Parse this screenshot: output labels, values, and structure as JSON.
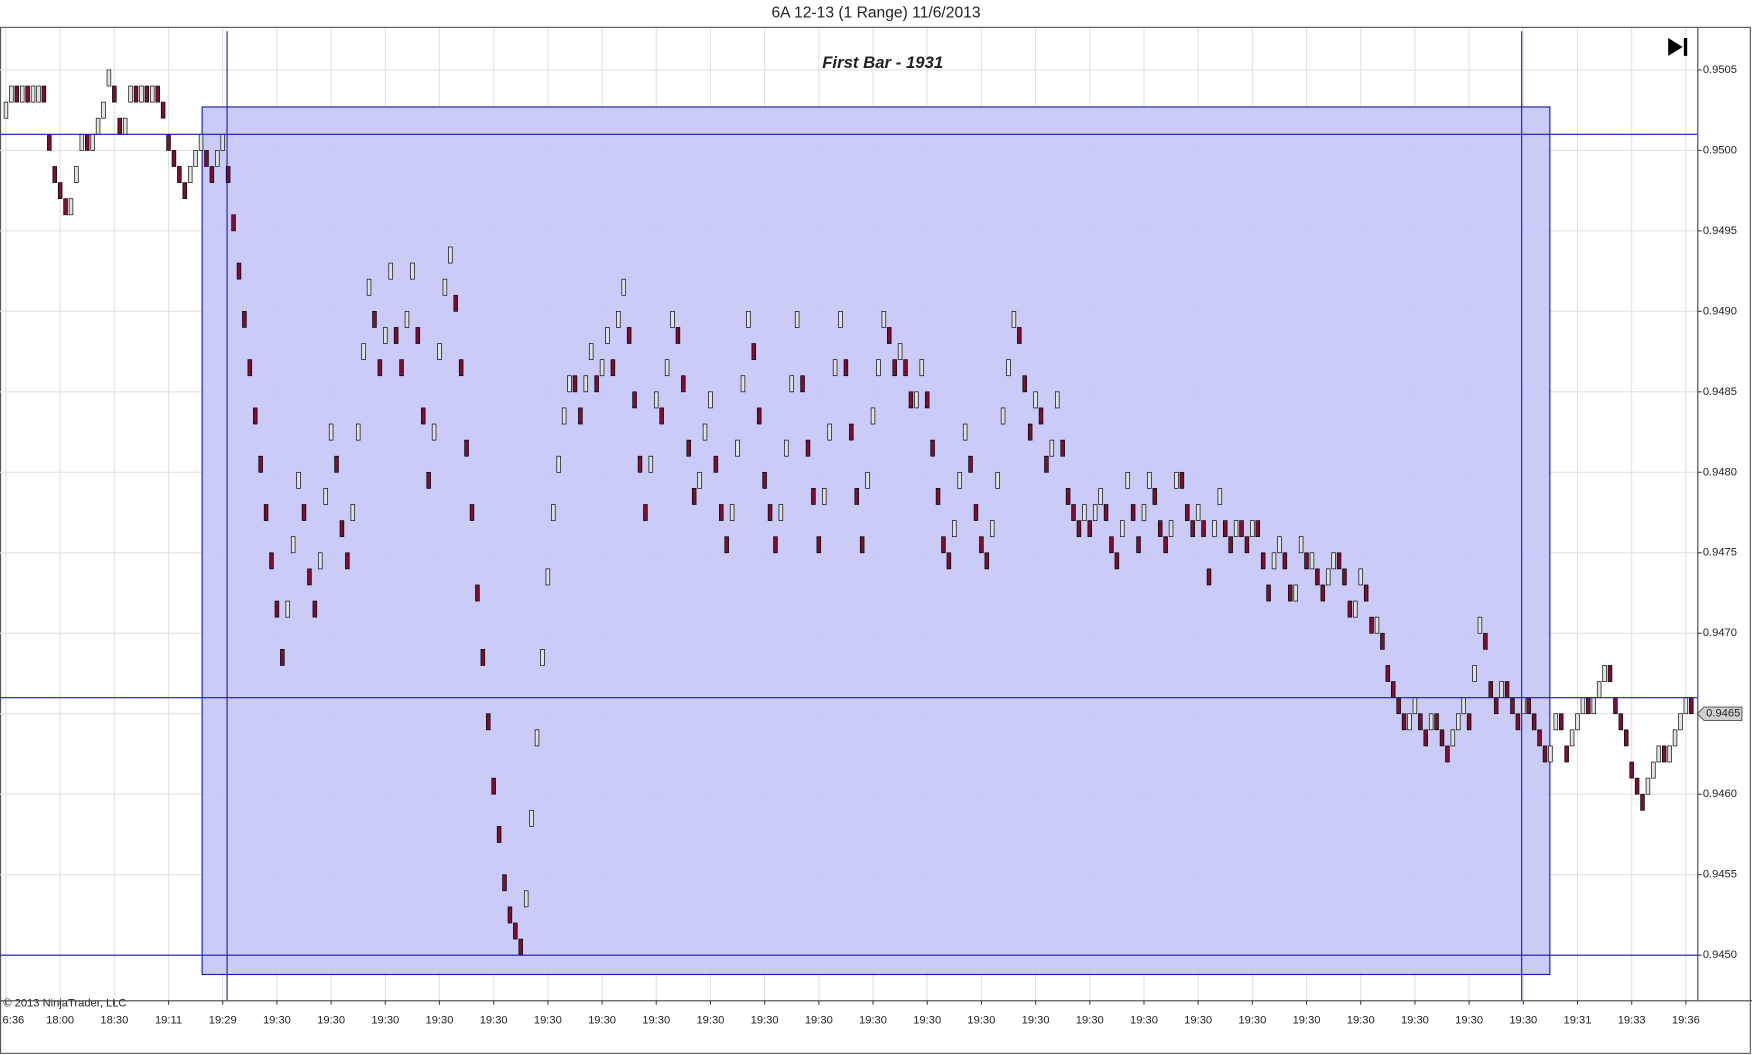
{
  "chart_data": {
    "type": "candlestick",
    "title": "6A 12-13 (1 Range)  11/6/2013",
    "annotation": "First Bar - 1931",
    "copyright": "© 2013 NinjaTrader, LLC",
    "colors": {
      "up": "#dfe3e3",
      "down": "#7a1030",
      "outline": "#000000",
      "lines": "#1a1aa8",
      "rectangle": "#c8c8f8",
      "grid": "#e2e2e2"
    },
    "open": [
      0.9502,
      0.9503,
      0.9504,
      0.9503,
      0.9504,
      0.9503,
      0.9503,
      0.9504,
      0.9501,
      0.9499,
      0.9498,
      0.9497,
      0.9496,
      0.9498,
      0.95,
      0.9501,
      0.95,
      0.9501,
      0.9502,
      0.9504,
      0.9504,
      0.9502,
      0.9501,
      0.9503,
      0.9504,
      0.9503,
      0.9504,
      0.9503,
      0.9504,
      0.9503,
      0.9501,
      0.95,
      0.9499,
      0.9498,
      0.9498,
      0.9499,
      0.95,
      0.95,
      0.9499,
      0.9499,
      0.95,
      0.9499,
      0.9496,
      0.9493,
      0.949,
      0.9487,
      0.9484,
      0.9481,
      0.9478,
      0.9475,
      0.9472,
      0.9469,
      0.9471,
      0.9475,
      0.9479,
      0.9478,
      0.9474,
      0.9472,
      0.9474,
      0.9478,
      0.9482,
      0.9481,
      0.9477,
      0.9475,
      0.9477,
      0.9482,
      0.9487,
      0.9491,
      0.949,
      0.9487,
      0.9488,
      0.9492,
      0.9489,
      0.9487,
      0.9489,
      0.9492,
      0.9489,
      0.9484,
      0.948,
      0.9482,
      0.9487,
      0.9491,
      0.9493,
      0.9491,
      0.9487,
      0.9482,
      0.9478,
      0.9473,
      0.9469,
      0.9465,
      0.9461,
      0.9458,
      0.9455,
      0.9453,
      0.9452,
      0.9451,
      0.9453,
      0.9458,
      0.9463,
      0.9468,
      0.9473,
      0.9477,
      0.948,
      0.9483,
      0.9485,
      0.9486,
      0.9484,
      0.9485,
      0.9487,
      0.9486,
      0.9486,
      0.9488,
      0.9487,
      0.9489,
      0.9491,
      0.9489,
      0.9485,
      0.9481,
      0.9478,
      0.948,
      0.9484,
      0.9484,
      0.9486,
      0.9489,
      0.9489,
      0.9486,
      0.9482,
      0.9479,
      0.9479,
      0.9482,
      0.9484,
      0.9481,
      0.9478,
      0.9476,
      0.9477,
      0.9481,
      0.9485,
      0.9489,
      0.9488,
      0.9484,
      0.948,
      0.9478,
      0.9476,
      0.9477,
      0.9481,
      0.9485,
      0.9489,
      0.9486,
      0.9482,
      0.9479,
      0.9476,
      0.9478,
      0.9482,
      0.9486,
      0.9489,
      0.9487,
      0.9483,
      0.9479,
      0.9476,
      0.9479,
      0.9483,
      0.9486,
      0.9489,
      0.9489,
      0.9487,
      0.9487,
      0.9487,
      0.9485,
      0.9484,
      0.9486,
      0.9485,
      0.9482,
      0.9479,
      0.9476,
      0.9475,
      0.9476,
      0.9479,
      0.9482,
      0.9481,
      0.9478,
      0.9476,
      0.9475,
      0.9476,
      0.9479,
      0.9483,
      0.9486,
      0.9489,
      0.9489,
      0.9486,
      0.9483,
      0.9484,
      0.9484,
      0.9481,
      0.9481,
      0.9484,
      0.9482,
      0.9479,
      0.9478,
      0.9477,
      0.9477,
      0.9477,
      0.9477,
      0.9478,
      0.9478,
      0.9476,
      0.9475,
      0.9476,
      0.9479,
      0.9478,
      0.9476,
      0.9477,
      0.9479,
      0.9479,
      0.9477,
      0.9476,
      0.9476,
      0.9479,
      0.948,
      0.9478,
      0.9477,
      0.9477,
      0.9477,
      0.9474,
      0.9476,
      0.9478,
      0.9477,
      0.9476,
      0.9476,
      0.9477,
      0.9476,
      0.9476,
      0.9477,
      0.9475,
      0.9473,
      0.9474,
      0.9475,
      0.9475,
      0.9473,
      0.9472,
      0.9475,
      0.9475,
      0.9474,
      0.9474,
      0.9473,
      0.9473,
      0.9474,
      0.9475,
      0.9474,
      0.9472,
      0.9471,
      0.9473,
      0.9473,
      0.9471,
      0.947,
      0.947,
      0.9468,
      0.9467,
      0.9466,
      0.9465,
      0.9464,
      0.9465,
      0.9465,
      0.9464,
      0.9464,
      0.9465,
      0.9464,
      0.9463,
      0.9463,
      0.9464,
      0.9465,
      0.9465,
      0.9467,
      0.947,
      0.947,
      0.9467,
      0.9466,
      0.9466,
      0.9467,
      0.9466,
      0.9465,
      0.9465,
      0.9466,
      0.9465,
      0.9464,
      0.9463,
      0.9462,
      0.9464,
      0.9465,
      0.9463,
      0.9463,
      0.9464,
      0.9465,
      0.9466,
      0.9465,
      0.9466,
      0.9467,
      0.9468,
      0.9466,
      0.9465,
      0.9464,
      0.9462,
      0.9461,
      0.946,
      0.946,
      0.9461,
      0.9462,
      0.9463,
      0.9462,
      0.9463,
      0.9464,
      0.9465,
      0.9466
    ],
    "close": [
      0.9503,
      0.9504,
      0.9503,
      0.9504,
      0.9503,
      0.9504,
      0.9504,
      0.9503,
      0.95,
      0.9498,
      0.9497,
      0.9496,
      0.9497,
      0.9499,
      0.9501,
      0.95,
      0.9501,
      0.9502,
      0.9503,
      0.9505,
      0.9503,
      0.9501,
      0.9502,
      0.9504,
      0.9503,
      0.9504,
      0.9503,
      0.9504,
      0.9503,
      0.9502,
      0.95,
      0.9499,
      0.9498,
      0.9497,
      0.9499,
      0.95,
      0.9501,
      0.9499,
      0.9498,
      0.95,
      0.9501,
      0.9498,
      0.9495,
      0.9492,
      0.9489,
      0.9486,
      0.9483,
      0.948,
      0.9477,
      0.9474,
      0.9471,
      0.9468,
      0.9472,
      0.9476,
      0.948,
      0.9477,
      0.9473,
      0.9471,
      0.9475,
      0.9479,
      0.9483,
      0.948,
      0.9476,
      0.9474,
      0.9478,
      0.9483,
      0.9488,
      0.9492,
      0.9489,
      0.9486,
      0.9489,
      0.9493,
      0.9488,
      0.9486,
      0.949,
      0.9493,
      0.9488,
      0.9483,
      0.9479,
      0.9483,
      0.9488,
      0.9492,
      0.9494,
      0.949,
      0.9486,
      0.9481,
      0.9477,
      0.9472,
      0.9468,
      0.9464,
      0.946,
      0.9457,
      0.9454,
      0.9452,
      0.9451,
      0.945,
      0.9454,
      0.9459,
      0.9464,
      0.9469,
      0.9474,
      0.9478,
      0.9481,
      0.9484,
      0.9486,
      0.9485,
      0.9483,
      0.9486,
      0.9488,
      0.9485,
      0.9487,
      0.9489,
      0.9486,
      0.949,
      0.9492,
      0.9488,
      0.9484,
      0.948,
      0.9477,
      0.9481,
      0.9485,
      0.9483,
      0.9487,
      0.949,
      0.9488,
      0.9485,
      0.9481,
      0.9478,
      0.948,
      0.9483,
      0.9485,
      0.948,
      0.9477,
      0.9475,
      0.9478,
      0.9482,
      0.9486,
      0.949,
      0.9487,
      0.9483,
      0.9479,
      0.9477,
      0.9475,
      0.9478,
      0.9482,
      0.9486,
      0.949,
      0.9485,
      0.9481,
      0.9478,
      0.9475,
      0.9479,
      0.9483,
      0.9487,
      0.949,
      0.9486,
      0.9482,
      0.9478,
      0.9475,
      0.948,
      0.9484,
      0.9487,
      0.949,
      0.9488,
      0.9486,
      0.9488,
      0.9486,
      0.9484,
      0.9485,
      0.9487,
      0.9484,
      0.9481,
      0.9478,
      0.9475,
      0.9474,
      0.9477,
      0.948,
      0.9483,
      0.948,
      0.9477,
      0.9475,
      0.9474,
      0.9477,
      0.948,
      0.9484,
      0.9487,
      0.949,
      0.9488,
      0.9485,
      0.9482,
      0.9485,
      0.9483,
      0.948,
      0.9482,
      0.9485,
      0.9481,
      0.9478,
      0.9477,
      0.9476,
      0.9478,
      0.9476,
      0.9478,
      0.9479,
      0.9477,
      0.9475,
      0.9474,
      0.9477,
      0.948,
      0.9477,
      0.9475,
      0.9478,
      0.948,
      0.9478,
      0.9476,
      0.9475,
      0.9477,
      0.948,
      0.9479,
      0.9477,
      0.9476,
      0.9478,
      0.9476,
      0.9473,
      0.9477,
      0.9479,
      0.9476,
      0.9475,
      0.9477,
      0.9476,
      0.9475,
      0.9477,
      0.9476,
      0.9474,
      0.9472,
      0.9475,
      0.9476,
      0.9474,
      0.9472,
      0.9473,
      0.9476,
      0.9474,
      0.9475,
      0.9473,
      0.9472,
      0.9474,
      0.9475,
      0.9474,
      0.9473,
      0.9471,
      0.9472,
      0.9474,
      0.9472,
      0.947,
      0.9471,
      0.9469,
      0.9467,
      0.9466,
      0.9465,
      0.9464,
      0.9465,
      0.9466,
      0.9464,
      0.9463,
      0.9465,
      0.9464,
      0.9463,
      0.9462,
      0.9464,
      0.9465,
      0.9466,
      0.9464,
      0.9468,
      0.9471,
      0.9469,
      0.9466,
      0.9465,
      0.9467,
      0.9466,
      0.9465,
      0.9464,
      0.9466,
      0.9465,
      0.9464,
      0.9463,
      0.9462,
      0.9463,
      0.9465,
      0.9464,
      0.9462,
      0.9464,
      0.9465,
      0.9466,
      0.9465,
      0.9466,
      0.9467,
      0.9468,
      0.9467,
      0.9465,
      0.9464,
      0.9463,
      0.9461,
      0.946,
      0.9459,
      0.9461,
      0.9462,
      0.9463,
      0.9462,
      0.9463,
      0.9464,
      0.9465,
      0.9466,
      0.9465
    ],
    "xlim": [
      -1.1,
      312.1
    ],
    "ylim": [
      0.94472,
      0.95074
    ],
    "yticks": [
      {
        "value": 0.945,
        "label": "0.9450"
      },
      {
        "value": 0.9455,
        "label": "0.9455"
      },
      {
        "value": 0.946,
        "label": "0.9460"
      },
      {
        "value": 0.9465,
        "label": "0.9465"
      },
      {
        "value": 0.947,
        "label": "0.9470"
      },
      {
        "value": 0.9475,
        "label": "0.9475"
      },
      {
        "value": 0.948,
        "label": "0.9480"
      },
      {
        "value": 0.9485,
        "label": "0.9485"
      },
      {
        "value": 0.949,
        "label": "0.9490"
      },
      {
        "value": 0.9495,
        "label": "0.9495"
      },
      {
        "value": 0.95,
        "label": "0.9500"
      },
      {
        "value": 0.9505,
        "label": "0.9505"
      }
    ],
    "xticks": [
      {
        "value": 0,
        "label": "6:36"
      },
      {
        "value": 10,
        "label": "18:00"
      },
      {
        "value": 20,
        "label": "18:30"
      },
      {
        "value": 30,
        "label": "19:11"
      },
      {
        "value": 40,
        "label": "19:29"
      },
      {
        "value": 50,
        "label": "19:30"
      },
      {
        "value": 60,
        "label": "19:30"
      },
      {
        "value": 70,
        "label": "19:30"
      },
      {
        "value": 80,
        "label": "19:30"
      },
      {
        "value": 90,
        "label": "19:30"
      },
      {
        "value": 100,
        "label": "19:30"
      },
      {
        "value": 110,
        "label": "19:30"
      },
      {
        "value": 120,
        "label": "19:30"
      },
      {
        "value": 130,
        "label": "19:30"
      },
      {
        "value": 140,
        "label": "19:30"
      },
      {
        "value": 150,
        "label": "19:30"
      },
      {
        "value": 160,
        "label": "19:30"
      },
      {
        "value": 170,
        "label": "19:30"
      },
      {
        "value": 180,
        "label": "19:30"
      },
      {
        "value": 190,
        "label": "19:30"
      },
      {
        "value": 200,
        "label": "19:30"
      },
      {
        "value": 210,
        "label": "19:30"
      },
      {
        "value": 220,
        "label": "19:30"
      },
      {
        "value": 230,
        "label": "19:30"
      },
      {
        "value": 240,
        "label": "19:30"
      },
      {
        "value": 250,
        "label": "19:30"
      },
      {
        "value": 260,
        "label": "19:30"
      },
      {
        "value": 270,
        "label": "19:30"
      },
      {
        "value": 280,
        "label": "19:30"
      },
      {
        "value": 290,
        "label": "19:31"
      },
      {
        "value": 300,
        "label": "19:33"
      },
      {
        "value": 310,
        "label": "19:36"
      }
    ],
    "grid": true,
    "horizontal_lines": [
      0.9501,
      0.9466,
      0.945
    ],
    "vertical_lines": [
      40.8,
      279.7
    ],
    "rectangle": {
      "x": [
        36.2,
        284.9
      ],
      "y": [
        0.94488,
        0.95027
      ]
    },
    "price_marker": {
      "value": 0.9465,
      "label": "0.9465"
    }
  }
}
